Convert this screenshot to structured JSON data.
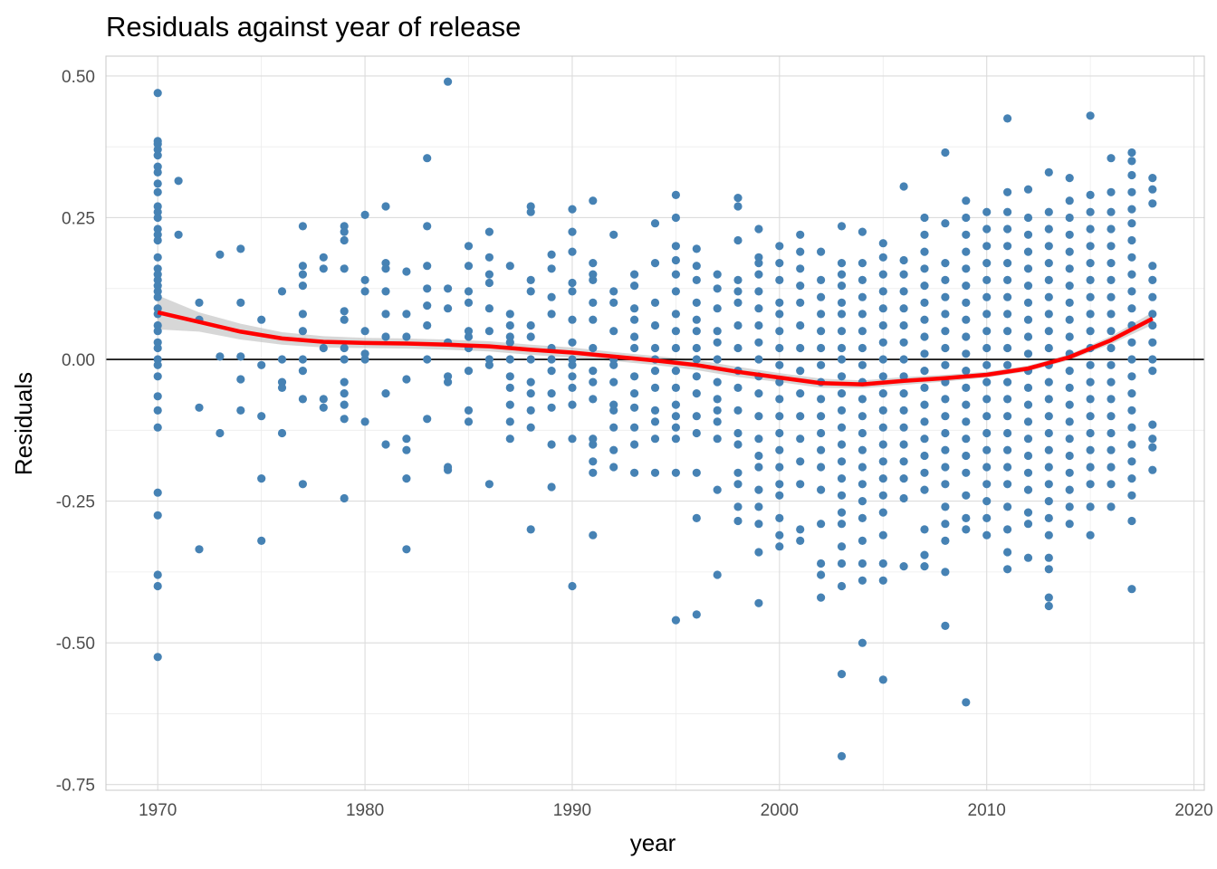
{
  "chart_data": {
    "type": "scatter",
    "title": "Residuals against year of release",
    "xlabel": "year",
    "ylabel": "Residuals",
    "xlim": [
      1967.5,
      2020.5
    ],
    "ylim": [
      -0.76,
      0.535
    ],
    "x_ticks": [
      1970,
      1980,
      1990,
      2000,
      2010,
      2020
    ],
    "x_tick_labels": [
      "1970",
      "1980",
      "1990",
      "2000",
      "2010",
      "2020"
    ],
    "y_ticks": [
      0.5,
      0.25,
      0.0,
      -0.25,
      -0.5,
      -0.75
    ],
    "y_tick_labels": [
      "0.50",
      "0.25",
      "0.00",
      "-0.25",
      "-0.50",
      "-0.75"
    ],
    "grid": true,
    "reference_line": {
      "y": 0.0,
      "color": "#000000"
    },
    "point_color": "#4682b4",
    "smooth_color": "#ff0000",
    "band_color": "#bdbdbd",
    "smooth": {
      "x": [
        1970,
        1972,
        1974,
        1976,
        1978,
        1980,
        1982,
        1984,
        1986,
        1988,
        1990,
        1992,
        1994,
        1996,
        1998,
        2000,
        2002,
        2004,
        2006,
        2008,
        2010,
        2012,
        2014,
        2016,
        2018
      ],
      "y": [
        0.083,
        0.066,
        0.049,
        0.037,
        0.031,
        0.029,
        0.028,
        0.026,
        0.023,
        0.017,
        0.012,
        0.005,
        -0.002,
        -0.01,
        -0.022,
        -0.032,
        -0.042,
        -0.044,
        -0.038,
        -0.033,
        -0.027,
        -0.016,
        0.004,
        0.034,
        0.072
      ],
      "lower": [
        0.053,
        0.049,
        0.035,
        0.026,
        0.021,
        0.02,
        0.019,
        0.017,
        0.014,
        0.008,
        0.003,
        -0.003,
        -0.01,
        -0.019,
        -0.031,
        -0.04,
        -0.05,
        -0.051,
        -0.045,
        -0.039,
        -0.032,
        -0.021,
        -0.001,
        0.027,
        0.061
      ],
      "upper": [
        0.113,
        0.083,
        0.063,
        0.048,
        0.041,
        0.038,
        0.037,
        0.035,
        0.032,
        0.026,
        0.021,
        0.013,
        0.006,
        -0.001,
        -0.013,
        -0.024,
        -0.034,
        -0.037,
        -0.031,
        -0.027,
        -0.022,
        -0.011,
        0.009,
        0.041,
        0.083
      ]
    },
    "series": [
      {
        "year": 1970,
        "values": [
          0.47,
          0.385,
          0.38,
          0.37,
          0.36,
          0.34,
          0.33,
          0.31,
          0.295,
          0.27,
          0.26,
          0.25,
          0.23,
          0.22,
          0.21,
          0.18,
          0.16,
          0.15,
          0.14,
          0.13,
          0.12,
          0.11,
          0.09,
          0.08,
          0.06,
          0.05,
          0.03,
          0.02,
          0.0,
          -0.01,
          -0.03,
          -0.065,
          -0.09,
          -0.12,
          -0.235,
          -0.275,
          -0.38,
          -0.4,
          -0.525
        ]
      },
      {
        "year": 1971,
        "values": [
          0.315,
          0.22
        ]
      },
      {
        "year": 1972,
        "values": [
          0.1,
          0.07,
          -0.085,
          -0.335
        ]
      },
      {
        "year": 1973,
        "values": [
          0.185,
          0.005,
          -0.13
        ]
      },
      {
        "year": 1974,
        "values": [
          0.195,
          0.1,
          0.005,
          -0.035,
          -0.09
        ]
      },
      {
        "year": 1975,
        "values": [
          0.07,
          -0.01,
          -0.1,
          -0.21,
          -0.32
        ]
      },
      {
        "year": 1976,
        "values": [
          0.12,
          0.0,
          -0.04,
          -0.05,
          -0.13
        ]
      },
      {
        "year": 1977,
        "values": [
          0.235,
          0.165,
          0.15,
          0.13,
          0.08,
          0.05,
          0.0,
          -0.02,
          -0.07,
          -0.22
        ]
      },
      {
        "year": 1978,
        "values": [
          0.18,
          0.16,
          0.02,
          -0.07,
          -0.085
        ]
      },
      {
        "year": 1979,
        "values": [
          0.235,
          0.225,
          0.21,
          0.16,
          0.085,
          0.07,
          0.02,
          0.0,
          -0.04,
          -0.06,
          -0.08,
          -0.105,
          -0.245
        ]
      },
      {
        "year": 1980,
        "values": [
          0.255,
          0.14,
          0.12,
          0.05,
          0.01,
          0.0,
          -0.11
        ]
      },
      {
        "year": 1981,
        "values": [
          0.27,
          0.17,
          0.16,
          0.12,
          0.08,
          0.04,
          -0.06,
          -0.15
        ]
      },
      {
        "year": 1982,
        "values": [
          0.155,
          0.08,
          0.04,
          -0.035,
          -0.14,
          -0.16,
          -0.21,
          -0.335
        ]
      },
      {
        "year": 1983,
        "values": [
          0.355,
          0.235,
          0.165,
          0.125,
          0.095,
          0.06,
          0.0,
          -0.105
        ]
      },
      {
        "year": 1984,
        "values": [
          0.49,
          0.125,
          0.09,
          0.03,
          -0.03,
          -0.04,
          -0.19,
          -0.195
        ]
      },
      {
        "year": 1985,
        "values": [
          0.2,
          0.165,
          0.12,
          0.1,
          0.05,
          0.04,
          0.02,
          -0.02,
          -0.09,
          -0.11
        ]
      },
      {
        "year": 1986,
        "values": [
          0.225,
          0.18,
          0.15,
          0.135,
          0.09,
          0.05,
          0.0,
          -0.01,
          -0.22
        ]
      },
      {
        "year": 1987,
        "values": [
          0.165,
          0.08,
          0.06,
          0.04,
          0.03,
          0.0,
          -0.03,
          -0.05,
          -0.08,
          -0.11,
          -0.14
        ]
      },
      {
        "year": 1988,
        "values": [
          0.27,
          0.26,
          0.14,
          0.12,
          0.06,
          0.04,
          0.0,
          -0.04,
          -0.06,
          -0.09,
          -0.12,
          -0.3
        ]
      },
      {
        "year": 1989,
        "values": [
          0.185,
          0.16,
          0.11,
          0.08,
          0.02,
          0.0,
          -0.02,
          -0.06,
          -0.085,
          -0.15,
          -0.225
        ]
      },
      {
        "year": 1990,
        "values": [
          0.265,
          0.225,
          0.19,
          0.135,
          0.12,
          0.07,
          0.03,
          0.0,
          -0.01,
          -0.03,
          -0.05,
          -0.08,
          -0.14,
          -0.4
        ]
      },
      {
        "year": 1991,
        "values": [
          0.28,
          0.17,
          0.15,
          0.14,
          0.1,
          0.07,
          0.02,
          -0.02,
          -0.04,
          -0.07,
          -0.14,
          -0.15,
          -0.18,
          -0.2,
          -0.31
        ]
      },
      {
        "year": 1992,
        "values": [
          0.22,
          0.12,
          0.1,
          0.05,
          0.0,
          -0.01,
          -0.04,
          -0.08,
          -0.09,
          -0.12,
          -0.16,
          -0.19
        ]
      },
      {
        "year": 1993,
        "values": [
          0.15,
          0.13,
          0.09,
          0.07,
          0.04,
          0.02,
          -0.03,
          -0.06,
          -0.085,
          -0.12,
          -0.15,
          -0.2
        ]
      },
      {
        "year": 1994,
        "values": [
          0.24,
          0.17,
          0.1,
          0.06,
          0.02,
          0.0,
          -0.02,
          -0.05,
          -0.09,
          -0.11,
          -0.14,
          -0.2
        ]
      },
      {
        "year": 1995,
        "values": [
          0.29,
          0.25,
          0.2,
          0.175,
          0.15,
          0.12,
          0.08,
          0.05,
          0.02,
          -0.02,
          -0.05,
          -0.08,
          -0.1,
          -0.12,
          -0.14,
          -0.2,
          -0.46
        ]
      },
      {
        "year": 1996,
        "values": [
          0.195,
          0.165,
          0.14,
          0.1,
          0.07,
          0.05,
          0.02,
          0.0,
          -0.03,
          -0.06,
          -0.1,
          -0.13,
          -0.2,
          -0.28,
          -0.45
        ]
      },
      {
        "year": 1997,
        "values": [
          0.15,
          0.125,
          0.09,
          0.05,
          0.03,
          0.0,
          -0.04,
          -0.07,
          -0.09,
          -0.11,
          -0.14,
          -0.23,
          -0.38
        ]
      },
      {
        "year": 1998,
        "values": [
          0.285,
          0.27,
          0.21,
          0.14,
          0.12,
          0.1,
          0.06,
          0.02,
          -0.02,
          -0.05,
          -0.09,
          -0.13,
          -0.15,
          -0.2,
          -0.22,
          -0.26,
          -0.285
        ]
      },
      {
        "year": 1999,
        "values": [
          0.23,
          0.18,
          0.17,
          0.15,
          0.12,
          0.09,
          0.06,
          0.03,
          0.0,
          -0.03,
          -0.06,
          -0.1,
          -0.14,
          -0.17,
          -0.19,
          -0.23,
          -0.26,
          -0.29,
          -0.34,
          -0.43
        ]
      },
      {
        "year": 2000,
        "values": [
          0.2,
          0.17,
          0.14,
          0.1,
          0.08,
          0.05,
          0.02,
          -0.01,
          -0.04,
          -0.07,
          -0.1,
          -0.13,
          -0.16,
          -0.19,
          -0.22,
          -0.24,
          -0.28,
          -0.31,
          -0.33
        ]
      },
      {
        "year": 2001,
        "values": [
          0.22,
          0.19,
          0.16,
          0.13,
          0.1,
          0.06,
          0.02,
          -0.02,
          -0.06,
          -0.1,
          -0.14,
          -0.18,
          -0.22,
          -0.3,
          -0.32
        ]
      },
      {
        "year": 2002,
        "values": [
          0.19,
          0.14,
          0.11,
          0.08,
          0.05,
          0.02,
          -0.01,
          -0.04,
          -0.07,
          -0.1,
          -0.13,
          -0.16,
          -0.19,
          -0.23,
          -0.29,
          -0.36,
          -0.38,
          -0.42
        ]
      },
      {
        "year": 2003,
        "values": [
          0.235,
          0.17,
          0.15,
          0.13,
          0.1,
          0.08,
          0.05,
          0.02,
          0.0,
          -0.03,
          -0.06,
          -0.09,
          -0.12,
          -0.15,
          -0.18,
          -0.21,
          -0.24,
          -0.27,
          -0.29,
          -0.33,
          -0.36,
          -0.4,
          -0.555,
          -0.7
        ]
      },
      {
        "year": 2004,
        "values": [
          0.225,
          0.17,
          0.14,
          0.11,
          0.08,
          0.05,
          0.02,
          -0.01,
          -0.04,
          -0.07,
          -0.1,
          -0.13,
          -0.16,
          -0.19,
          -0.22,
          -0.25,
          -0.28,
          -0.32,
          -0.36,
          -0.39,
          -0.5
        ]
      },
      {
        "year": 2005,
        "values": [
          0.205,
          0.18,
          0.15,
          0.12,
          0.09,
          0.06,
          0.03,
          0.0,
          -0.03,
          -0.06,
          -0.09,
          -0.12,
          -0.15,
          -0.18,
          -0.21,
          -0.24,
          -0.27,
          -0.31,
          -0.36,
          -0.39,
          -0.565
        ]
      },
      {
        "year": 2006,
        "values": [
          0.305,
          0.175,
          0.15,
          0.12,
          0.09,
          0.06,
          0.03,
          0.0,
          -0.03,
          -0.06,
          -0.09,
          -0.12,
          -0.15,
          -0.18,
          -0.21,
          -0.245,
          -0.365
        ]
      },
      {
        "year": 2007,
        "values": [
          0.25,
          0.22,
          0.19,
          0.16,
          0.13,
          0.1,
          0.07,
          0.04,
          0.01,
          -0.02,
          -0.05,
          -0.08,
          -0.11,
          -0.14,
          -0.17,
          -0.2,
          -0.23,
          -0.3,
          -0.345,
          -0.365
        ]
      },
      {
        "year": 2008,
        "values": [
          0.365,
          0.24,
          0.17,
          0.14,
          0.11,
          0.08,
          0.05,
          0.02,
          -0.01,
          -0.04,
          -0.07,
          -0.1,
          -0.13,
          -0.16,
          -0.19,
          -0.22,
          -0.26,
          -0.29,
          -0.32,
          -0.375,
          -0.47
        ]
      },
      {
        "year": 2009,
        "values": [
          0.28,
          0.25,
          0.22,
          0.19,
          0.16,
          0.13,
          0.1,
          0.07,
          0.04,
          0.01,
          -0.02,
          -0.05,
          -0.08,
          -0.11,
          -0.14,
          -0.17,
          -0.2,
          -0.24,
          -0.28,
          -0.3,
          -0.605
        ]
      },
      {
        "year": 2010,
        "values": [
          0.26,
          0.23,
          0.2,
          0.17,
          0.14,
          0.11,
          0.08,
          0.05,
          0.02,
          -0.01,
          -0.04,
          -0.07,
          -0.1,
          -0.13,
          -0.16,
          -0.19,
          -0.22,
          -0.25,
          -0.28,
          -0.31
        ]
      },
      {
        "year": 2011,
        "values": [
          0.425,
          0.295,
          0.26,
          0.23,
          0.2,
          0.17,
          0.14,
          0.11,
          0.08,
          0.05,
          0.02,
          -0.01,
          -0.04,
          -0.07,
          -0.1,
          -0.13,
          -0.16,
          -0.19,
          -0.22,
          -0.26,
          -0.3,
          -0.34,
          -0.37
        ]
      },
      {
        "year": 2012,
        "values": [
          0.3,
          0.25,
          0.22,
          0.19,
          0.16,
          0.13,
          0.1,
          0.07,
          0.04,
          0.01,
          -0.02,
          -0.05,
          -0.08,
          -0.11,
          -0.14,
          -0.17,
          -0.2,
          -0.23,
          -0.27,
          -0.29,
          -0.35
        ]
      },
      {
        "year": 2013,
        "values": [
          0.33,
          0.26,
          0.23,
          0.2,
          0.17,
          0.14,
          0.11,
          0.08,
          0.05,
          0.02,
          -0.01,
          -0.04,
          -0.07,
          -0.1,
          -0.13,
          -0.16,
          -0.19,
          -0.22,
          -0.25,
          -0.28,
          -0.31,
          -0.35,
          -0.37,
          -0.42,
          -0.435
        ]
      },
      {
        "year": 2014,
        "values": [
          0.32,
          0.28,
          0.25,
          0.22,
          0.19,
          0.16,
          0.13,
          0.1,
          0.07,
          0.04,
          0.01,
          -0.02,
          -0.05,
          -0.08,
          -0.11,
          -0.14,
          -0.17,
          -0.2,
          -0.23,
          -0.26,
          -0.29
        ]
      },
      {
        "year": 2015,
        "values": [
          0.43,
          0.29,
          0.26,
          0.23,
          0.2,
          0.17,
          0.14,
          0.11,
          0.08,
          0.05,
          0.02,
          -0.01,
          -0.04,
          -0.07,
          -0.1,
          -0.13,
          -0.16,
          -0.19,
          -0.22,
          -0.26,
          -0.31
        ]
      },
      {
        "year": 2016,
        "values": [
          0.355,
          0.295,
          0.26,
          0.23,
          0.2,
          0.17,
          0.14,
          0.11,
          0.08,
          0.05,
          0.02,
          -0.01,
          -0.04,
          -0.07,
          -0.1,
          -0.13,
          -0.16,
          -0.19,
          -0.22,
          -0.26
        ]
      },
      {
        "year": 2017,
        "values": [
          0.365,
          0.35,
          0.325,
          0.295,
          0.265,
          0.24,
          0.21,
          0.18,
          0.15,
          0.12,
          0.09,
          0.06,
          0.03,
          0.0,
          -0.03,
          -0.06,
          -0.09,
          -0.12,
          -0.15,
          -0.18,
          -0.21,
          -0.24,
          -0.285,
          -0.405
        ]
      },
      {
        "year": 2018,
        "values": [
          0.32,
          0.3,
          0.275,
          0.165,
          0.14,
          0.11,
          0.08,
          0.06,
          0.03,
          0.0,
          -0.02,
          -0.115,
          -0.14,
          -0.155,
          -0.195
        ]
      }
    ]
  }
}
